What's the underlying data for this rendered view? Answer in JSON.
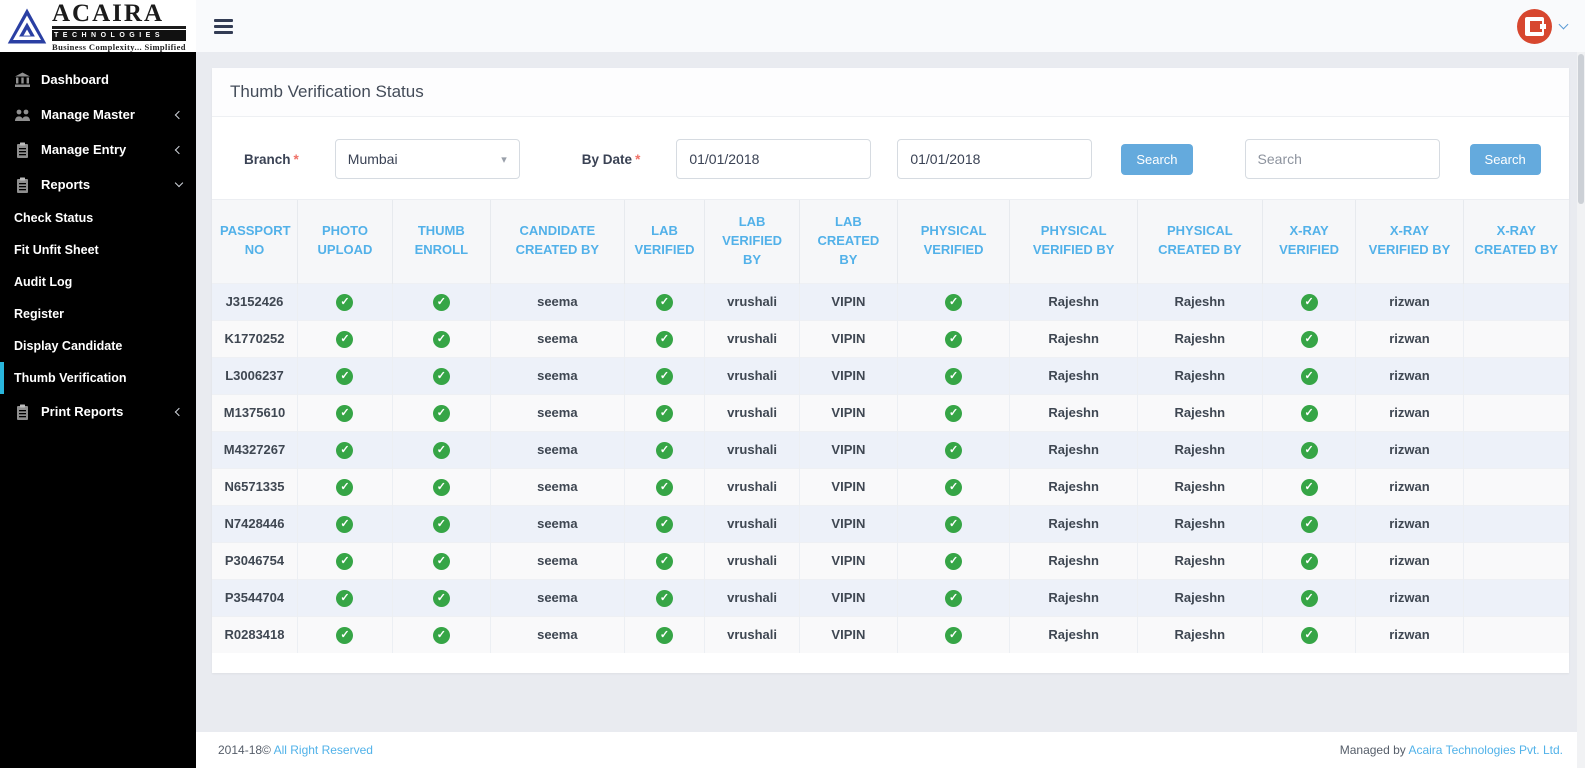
{
  "brand": {
    "name": "ACAIRA",
    "sub": "TECHNOLOGIES",
    "tagline": "Business Complexity... Simplified"
  },
  "sidebar": {
    "items": [
      {
        "label": "Dashboard",
        "icon": "bank-icon",
        "type": "top",
        "chevron": null,
        "active": false
      },
      {
        "label": "Manage Master",
        "icon": "users-icon",
        "type": "top",
        "chevron": "left",
        "active": false
      },
      {
        "label": "Manage Entry",
        "icon": "clipboard-icon",
        "type": "top",
        "chevron": "left",
        "active": false
      },
      {
        "label": "Reports",
        "icon": "clipboard-icon",
        "type": "top",
        "chevron": "down",
        "active": false
      },
      {
        "label": "Check Status",
        "icon": null,
        "type": "sub",
        "chevron": null,
        "active": false
      },
      {
        "label": "Fit Unfit Sheet",
        "icon": null,
        "type": "sub",
        "chevron": null,
        "active": false
      },
      {
        "label": "Audit Log",
        "icon": null,
        "type": "sub",
        "chevron": null,
        "active": false
      },
      {
        "label": "Register",
        "icon": null,
        "type": "sub",
        "chevron": null,
        "active": false
      },
      {
        "label": "Display Candidate",
        "icon": null,
        "type": "sub",
        "chevron": null,
        "active": false
      },
      {
        "label": "Thumb Verification",
        "icon": null,
        "type": "sub",
        "chevron": null,
        "active": true
      },
      {
        "label": "Print Reports",
        "icon": "clipboard-icon",
        "type": "top",
        "chevron": "left",
        "active": false
      }
    ]
  },
  "page": {
    "title": "Thumb Verification Status"
  },
  "filters": {
    "branch_label": "Branch",
    "required_mark": "*",
    "branch_value": "Mumbai",
    "by_date_label": "By Date",
    "date_from": "01/01/2018",
    "date_to": "01/01/2018",
    "search_button_label": "Search",
    "search_placeholder": "Search",
    "search_button2_label": "Search"
  },
  "table": {
    "columns": [
      {
        "label": "PASSPORT NO",
        "key": "passport_no",
        "type": "text"
      },
      {
        "label": "PHOTO UPLOAD",
        "key": "photo_upload",
        "type": "check"
      },
      {
        "label": "THUMB ENROLL",
        "key": "thumb_enroll",
        "type": "check"
      },
      {
        "label": "CANDIDATE CREATED BY",
        "key": "candidate_created_by",
        "type": "text"
      },
      {
        "label": "LAB VERIFIED",
        "key": "lab_verified",
        "type": "check"
      },
      {
        "label": "LAB VERIFIED BY",
        "key": "lab_verified_by",
        "type": "text"
      },
      {
        "label": "LAB CREATED BY",
        "key": "lab_created_by",
        "type": "text"
      },
      {
        "label": "PHYSICAL VERIFIED",
        "key": "physical_verified",
        "type": "check"
      },
      {
        "label": "PHYSICAL VERIFIED BY",
        "key": "physical_verified_by",
        "type": "text"
      },
      {
        "label": "PHYSICAL CREATED BY",
        "key": "physical_created_by",
        "type": "text"
      },
      {
        "label": "X-RAY VERIFIED",
        "key": "xray_verified",
        "type": "check"
      },
      {
        "label": "X-RAY VERIFIED BY",
        "key": "xray_verified_by",
        "type": "text"
      },
      {
        "label": "X-RAY CREATED BY",
        "key": "xray_created_by",
        "type": "text"
      }
    ],
    "rows": [
      {
        "passport_no": "J3152426",
        "photo_upload": true,
        "thumb_enroll": true,
        "candidate_created_by": "seema",
        "lab_verified": true,
        "lab_verified_by": "vrushali",
        "lab_created_by": "VIPIN",
        "physical_verified": true,
        "physical_verified_by": "Rajeshn",
        "physical_created_by": "Rajeshn",
        "xray_verified": true,
        "xray_verified_by": "rizwan",
        "xray_created_by": ""
      },
      {
        "passport_no": "K1770252",
        "photo_upload": true,
        "thumb_enroll": true,
        "candidate_created_by": "seema",
        "lab_verified": true,
        "lab_verified_by": "vrushali",
        "lab_created_by": "VIPIN",
        "physical_verified": true,
        "physical_verified_by": "Rajeshn",
        "physical_created_by": "Rajeshn",
        "xray_verified": true,
        "xray_verified_by": "rizwan",
        "xray_created_by": ""
      },
      {
        "passport_no": "L3006237",
        "photo_upload": true,
        "thumb_enroll": true,
        "candidate_created_by": "seema",
        "lab_verified": true,
        "lab_verified_by": "vrushali",
        "lab_created_by": "VIPIN",
        "physical_verified": true,
        "physical_verified_by": "Rajeshn",
        "physical_created_by": "Rajeshn",
        "xray_verified": true,
        "xray_verified_by": "rizwan",
        "xray_created_by": ""
      },
      {
        "passport_no": "M1375610",
        "photo_upload": true,
        "thumb_enroll": true,
        "candidate_created_by": "seema",
        "lab_verified": true,
        "lab_verified_by": "vrushali",
        "lab_created_by": "VIPIN",
        "physical_verified": true,
        "physical_verified_by": "Rajeshn",
        "physical_created_by": "Rajeshn",
        "xray_verified": true,
        "xray_verified_by": "rizwan",
        "xray_created_by": ""
      },
      {
        "passport_no": "M4327267",
        "photo_upload": true,
        "thumb_enroll": true,
        "candidate_created_by": "seema",
        "lab_verified": true,
        "lab_verified_by": "vrushali",
        "lab_created_by": "VIPIN",
        "physical_verified": true,
        "physical_verified_by": "Rajeshn",
        "physical_created_by": "Rajeshn",
        "xray_verified": true,
        "xray_verified_by": "rizwan",
        "xray_created_by": ""
      },
      {
        "passport_no": "N6571335",
        "photo_upload": true,
        "thumb_enroll": true,
        "candidate_created_by": "seema",
        "lab_verified": true,
        "lab_verified_by": "vrushali",
        "lab_created_by": "VIPIN",
        "physical_verified": true,
        "physical_verified_by": "Rajeshn",
        "physical_created_by": "Rajeshn",
        "xray_verified": true,
        "xray_verified_by": "rizwan",
        "xray_created_by": ""
      },
      {
        "passport_no": "N7428446",
        "photo_upload": true,
        "thumb_enroll": true,
        "candidate_created_by": "seema",
        "lab_verified": true,
        "lab_verified_by": "vrushali",
        "lab_created_by": "VIPIN",
        "physical_verified": true,
        "physical_verified_by": "Rajeshn",
        "physical_created_by": "Rajeshn",
        "xray_verified": true,
        "xray_verified_by": "rizwan",
        "xray_created_by": ""
      },
      {
        "passport_no": "P3046754",
        "photo_upload": true,
        "thumb_enroll": true,
        "candidate_created_by": "seema",
        "lab_verified": true,
        "lab_verified_by": "vrushali",
        "lab_created_by": "VIPIN",
        "physical_verified": true,
        "physical_verified_by": "Rajeshn",
        "physical_created_by": "Rajeshn",
        "xray_verified": true,
        "xray_verified_by": "rizwan",
        "xray_created_by": ""
      },
      {
        "passport_no": "P3544704",
        "photo_upload": true,
        "thumb_enroll": true,
        "candidate_created_by": "seema",
        "lab_verified": true,
        "lab_verified_by": "vrushali",
        "lab_created_by": "VIPIN",
        "physical_verified": true,
        "physical_verified_by": "Rajeshn",
        "physical_created_by": "Rajeshn",
        "xray_verified": true,
        "xray_verified_by": "rizwan",
        "xray_created_by": ""
      },
      {
        "passport_no": "R0283418",
        "photo_upload": true,
        "thumb_enroll": true,
        "candidate_created_by": "seema",
        "lab_verified": true,
        "lab_verified_by": "vrushali",
        "lab_created_by": "VIPIN",
        "physical_verified": true,
        "physical_verified_by": "Rajeshn",
        "physical_created_by": "Rajeshn",
        "xray_verified": true,
        "xray_verified_by": "rizwan",
        "xray_created_by": ""
      }
    ]
  },
  "footer": {
    "left_prefix": "2014-18© ",
    "left_link": "All Right Reserved",
    "right_prefix": "Managed by ",
    "right_link": "Acaira Technologies Pvt. Ltd."
  },
  "colors": {
    "accent_blue": "#52b1e9",
    "button_blue": "#64aadd",
    "check_green": "#36a546",
    "active_cyan": "#29b6dc",
    "avatar_red": "#d7472f"
  }
}
